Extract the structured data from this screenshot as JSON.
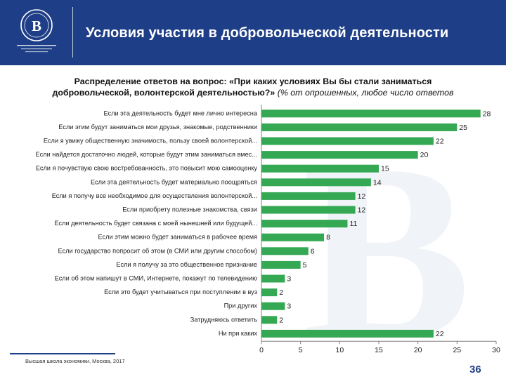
{
  "header": {
    "title": "Условия участия в добровольческой деятельности",
    "background": "#1e3f87"
  },
  "question": {
    "lead": "Распределение ответов на вопрос: «При каких условиях Вы бы стали заниматься",
    "question_rest": "добровольческой, волонтерской деятельностью?»",
    "note": " (% от опрошенных, любое число ответов"
  },
  "footer": {
    "institution": "Высшая школа экономики, Москва, 2017",
    "page_number": "36"
  },
  "chart_data": {
    "type": "bar",
    "orientation": "horizontal",
    "categories": [
      "Если эта деятельность будет мне лично интересна",
      "Если этим будут заниматься мои друзья, знакомые, родственники",
      "Если я увижу общественную значимость, пользу своей волонтерской...",
      "Если найдется достаточно людей, которые будут этим заниматься вмес...",
      "Если я почувствую свою востребованность, это повысит мою самооценку",
      "Если эта деятельность будет материально поощряться",
      "Если я получу все необходимое для осуществления волонтерской...",
      "Если приобрету полезные знакомства, связи",
      "Если деятельность будет связана с моей нынешней или будущей...",
      "Если этим можно будет заниматься в рабочее время",
      "Если государство попросит об этом (в СМИ или другим способом)",
      "Если я получу за это общественное признание",
      "Если об этом напишут в СМИ, Интернете, покажут по телевидению",
      "Если это будет учитываться при поступлении в вуз",
      "При других",
      "Затрудняюсь ответить",
      "Ни при каких"
    ],
    "values": [
      28,
      25,
      22,
      20,
      15,
      14,
      12,
      12,
      11,
      8,
      6,
      5,
      3,
      2,
      3,
      2,
      22
    ],
    "value_labels": [
      "28",
      "25",
      "22",
      "20",
      "15",
      "14",
      "12",
      "12",
      "11",
      "8",
      "6",
      "5",
      "3",
      "2",
      "3",
      "2",
      "22"
    ],
    "xlim": [
      0,
      30
    ],
    "ticks": [
      0,
      5,
      10,
      15,
      20,
      25,
      30
    ],
    "tick_labels": [
      "0",
      "5",
      "10",
      "15",
      "20",
      "25",
      "30"
    ],
    "bar_color": "#34a853",
    "grid": false,
    "legend": "none"
  }
}
